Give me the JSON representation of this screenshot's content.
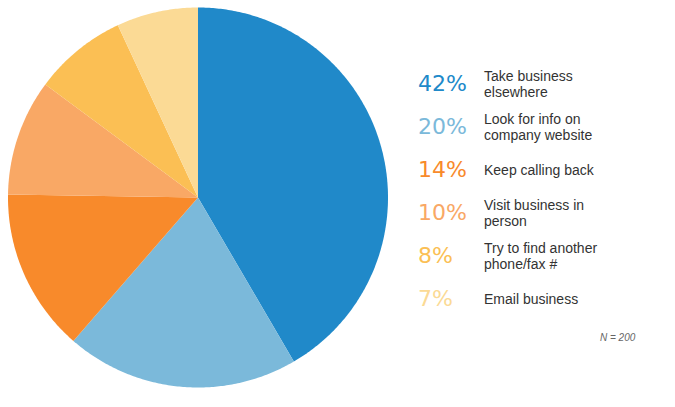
{
  "chart_data": {
    "type": "pie",
    "categories": [
      "Take business elsewhere",
      "Look for info on company website",
      "Keep calling back",
      "Visit business in person",
      "Try to find another phone/fax #",
      "Email business"
    ],
    "values": [
      42,
      20,
      14,
      10,
      8,
      7
    ],
    "value_labels": [
      "42%",
      "20%",
      "14%",
      "10%",
      "8%",
      "7%"
    ],
    "data_labels": true,
    "colors": [
      "#2089c9",
      "#7bb9da",
      "#f88a2b",
      "#f9a865",
      "#fbbf54",
      "#fbda95"
    ],
    "legend": "right",
    "annotations": [
      "N = 200"
    ]
  }
}
